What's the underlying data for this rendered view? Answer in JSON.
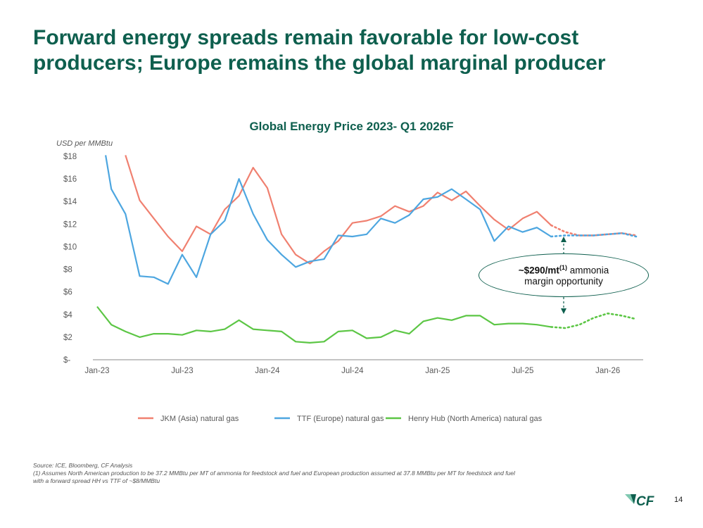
{
  "slide": {
    "title": "Forward energy spreads remain favorable for low-cost producers; Europe remains the global marginal producer",
    "page_number": "14",
    "logo_text": "CF"
  },
  "callout": {
    "value": "~$290/mt",
    "superscript": "(1)",
    "text_suffix": " ammonia",
    "text_line2": "margin opportunity"
  },
  "footnotes": {
    "source": "Source: ICE, Bloomberg, CF Analysis",
    "note1_line1": "(1) Assumes North American production to be 37.2 MMBtu per MT of ammonia for feedstock and fuel and European production assumed at 37.8 MMBtu per MT for feedstock and fuel",
    "note1_line2": "with a forward spread HH vs TTF of ~$8/MMBtu"
  },
  "colors": {
    "title": "#0e5f4e",
    "jkm": "#f08070",
    "ttf": "#4da6e0",
    "hh": "#5cc645",
    "axis": "#888888",
    "label": "#595959"
  },
  "chart_data": {
    "type": "line",
    "title": "Global Energy Price 2023- Q1 2026F",
    "ylabel": "USD per MMBtu",
    "xlabel": "",
    "ylim": [
      0,
      18
    ],
    "yticks": [
      0,
      2,
      4,
      6,
      8,
      10,
      12,
      14,
      16,
      18
    ],
    "ytick_labels": [
      "$-",
      "$2",
      "$4",
      "$6",
      "$8",
      "$10",
      "$12",
      "$14",
      "$16",
      "$18"
    ],
    "xlim": [
      0,
      38
    ],
    "xticks": [
      0,
      6,
      12,
      18,
      24,
      30,
      36
    ],
    "xtick_labels": [
      "Jan-23",
      "Jul-23",
      "Jan-24",
      "Jul-24",
      "Jan-25",
      "Jul-25",
      "Jan-26"
    ],
    "x_unit": "months since Jan-23",
    "legend_position": "bottom",
    "series": [
      {
        "name": "JKM (Asia) natural gas",
        "color": "#f08070",
        "actual": {
          "x": [
            2,
            3,
            4,
            5,
            6,
            7,
            8,
            9,
            10,
            11,
            12,
            13,
            14,
            15,
            16,
            17,
            18,
            19,
            20,
            21,
            22,
            23,
            24,
            25,
            26,
            27,
            28,
            29,
            30,
            31,
            32
          ],
          "y": [
            18.1,
            14.1,
            12.5,
            10.9,
            9.6,
            11.8,
            11.1,
            13.3,
            14.5,
            17.0,
            15.2,
            11.1,
            9.3,
            8.5,
            9.6,
            10.5,
            12.1,
            12.3,
            12.7,
            13.6,
            13.1,
            13.6,
            14.8,
            14.1,
            14.9,
            13.6,
            12.4,
            11.5,
            12.5,
            13.1,
            11.9
          ]
        },
        "forecast": {
          "x": [
            32,
            33,
            34,
            35,
            36,
            37,
            38
          ],
          "y": [
            11.9,
            11.3,
            11.0,
            11.0,
            11.1,
            11.2,
            11.0
          ]
        }
      },
      {
        "name": "TTF (Europe) natural gas",
        "color": "#4da6e0",
        "actual": {
          "x": [
            0.6,
            1,
            2,
            3,
            4,
            5,
            6,
            7,
            8,
            9,
            10,
            11,
            12,
            13,
            14,
            15,
            16,
            17,
            18,
            19,
            20,
            21,
            22,
            23,
            24,
            25,
            26,
            27,
            28,
            29,
            30,
            31,
            32
          ],
          "y": [
            18.1,
            15.1,
            12.9,
            7.4,
            7.3,
            6.7,
            9.3,
            7.3,
            11.1,
            12.3,
            16.0,
            12.9,
            10.6,
            9.3,
            8.2,
            8.7,
            8.9,
            11.0,
            10.9,
            11.1,
            12.5,
            12.1,
            12.8,
            14.2,
            14.4,
            15.1,
            14.2,
            13.3,
            10.5,
            11.8,
            11.3,
            11.7,
            10.9
          ]
        },
        "forecast": {
          "x": [
            32,
            33,
            34,
            35,
            36,
            37,
            38
          ],
          "y": [
            10.9,
            11.0,
            11.0,
            11.0,
            11.1,
            11.2,
            10.9
          ]
        }
      },
      {
        "name": "Henry Hub (North America) natural gas",
        "color": "#5cc645",
        "actual": {
          "x": [
            0,
            1,
            2,
            3,
            4,
            5,
            6,
            7,
            8,
            9,
            10,
            11,
            12,
            13,
            14,
            15,
            16,
            17,
            18,
            19,
            20,
            21,
            22,
            23,
            24,
            25,
            26,
            27,
            28,
            29,
            30,
            31,
            32
          ],
          "y": [
            4.7,
            3.1,
            2.5,
            2.0,
            2.3,
            2.3,
            2.2,
            2.6,
            2.5,
            2.7,
            3.5,
            2.7,
            2.6,
            2.5,
            1.6,
            1.5,
            1.6,
            2.5,
            2.6,
            1.9,
            2.0,
            2.6,
            2.3,
            3.4,
            3.7,
            3.5,
            3.9,
            3.9,
            3.1,
            3.2,
            3.2,
            3.1,
            2.9
          ]
        },
        "forecast": {
          "x": [
            32,
            33,
            34,
            35,
            36,
            37,
            38
          ],
          "y": [
            2.9,
            2.8,
            3.1,
            3.7,
            4.1,
            3.9,
            3.6
          ]
        }
      }
    ]
  }
}
